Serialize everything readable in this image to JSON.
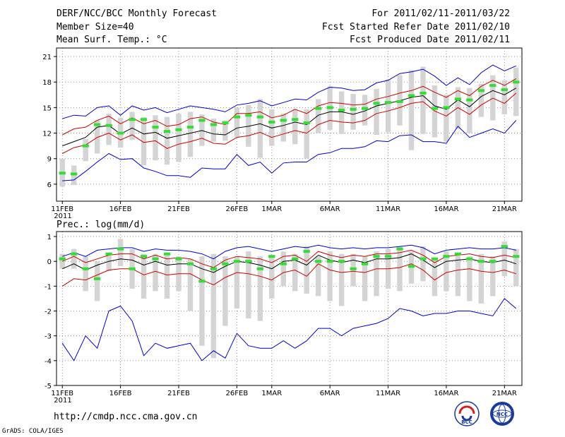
{
  "header": {
    "title": "DERF/NCC/BCC Monthly Forecast",
    "member_size": "Member Size=40",
    "variable": "Mean Surf. Temp.: °C",
    "period": "For 2011/02/11-2011/03/22",
    "started": "Fcst Started Refer Date 2011/02/10",
    "produced": "Fcst Produced Date 2011/02/11"
  },
  "footer": {
    "url": "http://cmdp.ncc.cma.gov.cn",
    "credit": "GrADS: COLA/IGES",
    "logo1": "BCC",
    "logo2": "NCC"
  },
  "colors": {
    "upper_env": "#0000cc",
    "inner_env": "#cc0000",
    "mean": "#000000",
    "box": "#d4d4d4",
    "obs": "#33dd33"
  },
  "chart_data": [
    {
      "type": "line",
      "title": "Mean Surf. Temp.: °C",
      "ylim": [
        4,
        22
      ],
      "yticks": [
        6,
        9,
        12,
        15,
        18,
        21
      ],
      "xlim": [
        0.5,
        40.5
      ],
      "xticks": [
        {
          "day": 1,
          "label": "11FEB",
          "sub": "2011"
        },
        {
          "day": 6,
          "label": "16FEB"
        },
        {
          "day": 11,
          "label": "21FEB"
        },
        {
          "day": 16,
          "label": "26FEB"
        },
        {
          "day": 19,
          "label": "1MAR"
        },
        {
          "day": 24,
          "label": "6MAR"
        },
        {
          "day": 29,
          "label": "11MAR"
        },
        {
          "day": 34,
          "label": "16MAR"
        },
        {
          "day": 39,
          "label": "21MAR"
        }
      ],
      "series": [
        {
          "name": "max",
          "values": [
            13.7,
            14.1,
            14.0,
            15.0,
            15.2,
            14.1,
            15.2,
            14.7,
            15.0,
            14.4,
            14.8,
            15.2,
            15.0,
            14.8,
            14.5,
            15.3,
            15.5,
            15.8,
            15.2,
            15.6,
            16.0,
            15.9,
            16.8,
            17.4,
            17.3,
            17.0,
            17.1,
            17.9,
            18.2,
            19.0,
            19.2,
            19.5,
            18.7,
            17.6,
            18.5,
            17.7,
            19.1,
            20.0,
            19.3,
            19.9
          ]
        },
        {
          "name": "upper",
          "values": [
            11.8,
            12.5,
            12.7,
            13.5,
            14.0,
            13.1,
            13.8,
            13.1,
            13.5,
            12.8,
            13.0,
            13.7,
            13.9,
            13.3,
            13.0,
            14.3,
            14.3,
            14.5,
            13.8,
            14.1,
            14.8,
            14.3,
            15.2,
            15.6,
            15.5,
            15.3,
            15.4,
            16.0,
            16.3,
            16.7,
            17.0,
            17.5,
            16.8,
            16.2,
            17.0,
            16.4,
            17.5,
            18.2,
            17.6,
            18.4
          ]
        },
        {
          "name": "mean",
          "values": [
            10.5,
            11.0,
            11.5,
            12.7,
            12.9,
            11.9,
            12.6,
            11.9,
            12.1,
            11.4,
            11.7,
            12.0,
            12.3,
            11.9,
            11.8,
            12.6,
            12.8,
            13.1,
            12.6,
            12.9,
            13.3,
            13.0,
            14.1,
            14.5,
            14.5,
            14.2,
            14.6,
            15.2,
            15.5,
            15.8,
            16.2,
            16.4,
            15.2,
            14.8,
            15.9,
            15.1,
            16.3,
            17.0,
            16.5,
            17.3
          ]
        },
        {
          "name": "lower",
          "values": [
            9.6,
            10.3,
            10.6,
            11.5,
            12.0,
            11.2,
            11.8,
            10.9,
            11.1,
            10.2,
            10.7,
            11.0,
            11.4,
            10.8,
            10.7,
            11.5,
            11.7,
            12.1,
            11.5,
            11.9,
            12.3,
            12.0,
            13.0,
            13.5,
            13.3,
            13.2,
            13.5,
            14.3,
            14.6,
            15.0,
            15.5,
            15.7,
            14.6,
            14.0,
            15.0,
            14.2,
            15.3,
            16.1,
            15.5,
            16.7
          ]
        },
        {
          "name": "min",
          "values": [
            6.4,
            6.5,
            7.5,
            8.6,
            9.6,
            8.9,
            9.0,
            7.9,
            7.5,
            7.0,
            7.0,
            6.8,
            7.9,
            7.8,
            7.8,
            9.5,
            8.2,
            8.6,
            7.3,
            8.5,
            8.6,
            8.6,
            9.5,
            9.7,
            10.2,
            10.2,
            10.4,
            11.1,
            11.0,
            11.7,
            11.8,
            11.0,
            11.0,
            10.8,
            12.8,
            11.5,
            12.0,
            12.5,
            12.0,
            13.5
          ]
        }
      ],
      "boxes": [
        [
          5.7,
          9.0
        ],
        [
          5.9,
          8.2
        ],
        [
          8.7,
          11.3
        ],
        [
          9.6,
          13.5
        ],
        [
          10.6,
          14.3
        ],
        [
          10.3,
          13.8
        ],
        [
          11.2,
          14.5
        ],
        [
          8.2,
          13.9
        ],
        [
          8.8,
          14.1
        ],
        [
          8.3,
          13.9
        ],
        [
          8.6,
          14.3
        ],
        [
          9.2,
          14.5
        ],
        [
          10.5,
          14.2
        ],
        [
          11.0,
          13.7
        ],
        [
          11.1,
          13.5
        ],
        [
          11.5,
          15.0
        ],
        [
          10.4,
          15.3
        ],
        [
          9.1,
          16.0
        ],
        [
          10.5,
          14.8
        ],
        [
          11.0,
          14.3
        ],
        [
          10.7,
          14.8
        ],
        [
          9.0,
          14.8
        ],
        [
          12.0,
          16.0
        ],
        [
          12.4,
          17.5
        ],
        [
          11.9,
          16.9
        ],
        [
          12.4,
          16.6
        ],
        [
          12.9,
          16.5
        ],
        [
          11.8,
          17.2
        ],
        [
          12.1,
          18.3
        ],
        [
          12.9,
          18.8
        ],
        [
          10.0,
          19.4
        ],
        [
          11.9,
          19.8
        ],
        [
          11.5,
          17.6
        ],
        [
          11.0,
          16.5
        ],
        [
          12.5,
          17.4
        ],
        [
          12.0,
          17.3
        ],
        [
          13.9,
          17.8
        ],
        [
          13.5,
          18.8
        ],
        [
          14.2,
          18.2
        ],
        [
          14.0,
          19.7
        ]
      ],
      "obs": [
        7.3,
        7.2,
        10.5,
        13.0,
        12.9,
        12.0,
        13.6,
        13.6,
        12.7,
        12.2,
        12.4,
        12.7,
        13.5,
        13.0,
        13.2,
        13.9,
        14.1,
        13.9,
        13.3,
        13.5,
        13.6,
        13.2,
        14.9,
        15.0,
        14.7,
        14.8,
        14.9,
        15.5,
        15.6,
        15.7,
        16.4,
        16.7,
        14.9,
        15.0,
        16.0,
        15.9,
        17.0,
        17.6,
        17.1,
        18.0
      ]
    },
    {
      "type": "line",
      "title": "Prec.: log(mm/d)",
      "ylim": [
        -5,
        1.2
      ],
      "yticks": [
        -5,
        -4,
        -3,
        -2,
        -1,
        0,
        1
      ],
      "xlim": [
        0.5,
        40.5
      ],
      "xticks": [
        {
          "day": 1,
          "label": "11FEB",
          "sub": "2011"
        },
        {
          "day": 6,
          "label": "16FEB"
        },
        {
          "day": 11,
          "label": "21FEB"
        },
        {
          "day": 16,
          "label": "26FEB"
        },
        {
          "day": 19,
          "label": "1MAR"
        },
        {
          "day": 24,
          "label": "6MAR"
        },
        {
          "day": 29,
          "label": "11MAR"
        },
        {
          "day": 34,
          "label": "16MAR"
        },
        {
          "day": 39,
          "label": "21MAR"
        }
      ],
      "series": [
        {
          "name": "max",
          "values": [
            0.2,
            0.35,
            0.2,
            0.45,
            0.5,
            0.55,
            0.55,
            0.4,
            0.5,
            0.45,
            0.45,
            0.4,
            0.3,
            0.1,
            0.4,
            0.55,
            0.6,
            0.5,
            0.4,
            0.5,
            0.6,
            0.55,
            0.65,
            0.55,
            0.5,
            0.55,
            0.5,
            0.55,
            0.55,
            0.6,
            0.65,
            0.55,
            0.3,
            0.45,
            0.5,
            0.55,
            0.5,
            0.5,
            0.55,
            0.45
          ]
        },
        {
          "name": "upper",
          "values": [
            0.0,
            0.2,
            -0.05,
            0.1,
            0.25,
            0.3,
            0.3,
            0.1,
            0.25,
            0.1,
            0.15,
            0.1,
            -0.1,
            -0.25,
            0.05,
            0.2,
            0.15,
            0.1,
            -0.05,
            0.2,
            0.25,
            0.0,
            0.4,
            0.25,
            0.15,
            0.25,
            0.2,
            0.3,
            0.3,
            0.35,
            0.45,
            0.25,
            -0.05,
            0.2,
            0.25,
            0.3,
            0.2,
            0.15,
            0.25,
            0.15
          ]
        },
        {
          "name": "mean",
          "values": [
            -0.3,
            -0.1,
            -0.35,
            -0.15,
            0.0,
            0.1,
            0.05,
            -0.15,
            0.0,
            -0.15,
            -0.1,
            -0.1,
            -0.3,
            -0.45,
            -0.2,
            0.0,
            -0.05,
            -0.15,
            -0.3,
            0.0,
            0.05,
            -0.15,
            0.25,
            0.05,
            -0.05,
            0.05,
            -0.05,
            0.1,
            0.1,
            0.15,
            0.3,
            0.05,
            -0.25,
            0.0,
            0.05,
            0.1,
            0.0,
            -0.05,
            0.05,
            -0.1
          ]
        },
        {
          "name": "lower",
          "values": [
            -1.0,
            -0.7,
            -0.75,
            -0.55,
            -0.35,
            -0.3,
            -0.3,
            -0.55,
            -0.4,
            -0.55,
            -0.5,
            -0.5,
            -0.75,
            -0.95,
            -0.65,
            -0.45,
            -0.5,
            -0.6,
            -0.75,
            -0.45,
            -0.35,
            -0.6,
            -0.1,
            -0.35,
            -0.45,
            -0.4,
            -0.45,
            -0.3,
            -0.3,
            -0.25,
            -0.1,
            -0.35,
            -0.75,
            -0.45,
            -0.35,
            -0.3,
            -0.4,
            -0.45,
            -0.35,
            -0.5
          ]
        },
        {
          "name": "min",
          "values": [
            -3.3,
            -4.0,
            -3.0,
            -3.5,
            -2.0,
            -1.8,
            -2.4,
            -3.8,
            -3.3,
            -3.5,
            -3.4,
            -3.3,
            -4.0,
            -3.6,
            -3.9,
            -2.9,
            -3.4,
            -3.5,
            -3.5,
            -3.2,
            -3.5,
            -3.2,
            -2.7,
            -2.7,
            -3.0,
            -2.7,
            -2.6,
            -2.5,
            -2.3,
            -1.9,
            -2.0,
            -2.2,
            -2.1,
            -2.1,
            -2.0,
            -2.0,
            -2.1,
            -2.2,
            -1.5,
            -1.9
          ]
        }
      ],
      "boxes": [
        [
          -0.3,
          0.3
        ],
        [
          -0.3,
          0.5
        ],
        [
          -1.2,
          0.2
        ],
        [
          -1.6,
          0.0
        ],
        [
          -0.4,
          0.3
        ],
        [
          -0.2,
          0.9
        ],
        [
          -1.1,
          0.5
        ],
        [
          -1.5,
          0.3
        ],
        [
          -1.2,
          0.3
        ],
        [
          -1.5,
          0.3
        ],
        [
          -1.2,
          0.2
        ],
        [
          -2.0,
          0.1
        ],
        [
          -3.4,
          0.2
        ],
        [
          -3.9,
          0.3
        ],
        [
          -2.6,
          0.2
        ],
        [
          -1.9,
          0.2
        ],
        [
          -2.3,
          0.4
        ],
        [
          -2.4,
          0.2
        ],
        [
          -1.5,
          0.2
        ],
        [
          -1.0,
          0.4
        ],
        [
          -1.2,
          0.3
        ],
        [
          -1.3,
          0.6
        ],
        [
          -1.4,
          0.2
        ],
        [
          -1.6,
          0.4
        ],
        [
          -1.8,
          0.3
        ],
        [
          -1.0,
          0.3
        ],
        [
          -1.6,
          0.2
        ],
        [
          -1.4,
          0.4
        ],
        [
          -1.1,
          0.5
        ],
        [
          -1.2,
          0.6
        ],
        [
          -0.9,
          0.4
        ],
        [
          -0.8,
          0.6
        ],
        [
          -1.4,
          0.1
        ],
        [
          -1.2,
          0.4
        ],
        [
          -1.4,
          0.3
        ],
        [
          -1.6,
          0.2
        ],
        [
          -1.7,
          0.3
        ],
        [
          -1.4,
          0.2
        ],
        [
          -0.6,
          0.8
        ],
        [
          -1.0,
          0.5
        ]
      ],
      "obs": [
        0.1,
        0.3,
        -0.3,
        -0.7,
        0.3,
        0.5,
        -0.3,
        0.2,
        0.1,
        0.3,
        0.1,
        -0.1,
        -0.8,
        -0.3,
        -0.1,
        0.0,
        0.0,
        -0.3,
        0.2,
        -0.1,
        0.1,
        0.4,
        0.0,
        0.0,
        0.0,
        -0.3,
        -0.1,
        0.2,
        0.2,
        0.5,
        -0.2,
        0.1,
        0.1,
        0.2,
        0.3,
        0.1,
        0.0,
        0.0,
        0.6,
        0.2
      ]
    }
  ]
}
